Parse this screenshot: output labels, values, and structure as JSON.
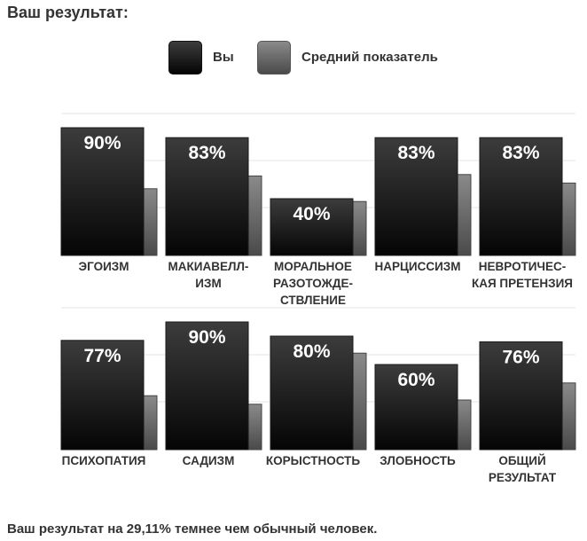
{
  "heading": "Ваш результат:",
  "legend": {
    "you": "Вы",
    "average": "Средний показатель"
  },
  "colors": {
    "you_top": "#3c3c3c",
    "you_bottom": "#050505",
    "avg_top": "#8a8a8a",
    "avg_bottom": "#4a4a4a",
    "label_text": "#ffffff",
    "gridline": "#e6e6e6"
  },
  "chart_data": [
    {
      "type": "bar",
      "title": "",
      "categories": [
        [
          "ЭГОИЗМ"
        ],
        [
          "МАКИАВЕЛЛ-",
          "ИЗМ"
        ],
        [
          "МОРАЛЬНОЕ",
          "РАЗОТОЖДЕ-",
          "СТВЛЕНИЕ"
        ],
        [
          "НАРЦИССИЗМ"
        ],
        [
          "НЕВРОТИЧЕС-",
          "КАЯ ПРЕТЕНЗИЯ"
        ]
      ],
      "series": [
        {
          "name": "Вы",
          "values": [
            90,
            83,
            40,
            83,
            83
          ],
          "labels": [
            "90%",
            "83%",
            "40%",
            "83%",
            "83%"
          ]
        },
        {
          "name": "Средний показатель",
          "values": [
            47,
            56,
            38,
            57,
            51
          ]
        }
      ],
      "ylim": [
        0,
        100
      ]
    },
    {
      "type": "bar",
      "title": "",
      "categories": [
        [
          "ПСИХОПАТИЯ"
        ],
        [
          "САДИЗМ"
        ],
        [
          "КОРЫСТНОСТЬ"
        ],
        [
          "ЗЛОБНОСТЬ"
        ],
        [
          "ОБЩИЙ",
          "РЕЗУЛЬТАТ"
        ]
      ],
      "series": [
        {
          "name": "Вы",
          "values": [
            77,
            90,
            80,
            60,
            76
          ],
          "labels": [
            "77%",
            "90%",
            "80%",
            "60%",
            "76%"
          ]
        },
        {
          "name": "Средний показатель",
          "values": [
            38,
            32,
            68,
            35,
            47
          ]
        }
      ],
      "ylim": [
        0,
        100
      ]
    }
  ],
  "footer": "Ваш результат на 29,11% темнее чем обычный человек."
}
